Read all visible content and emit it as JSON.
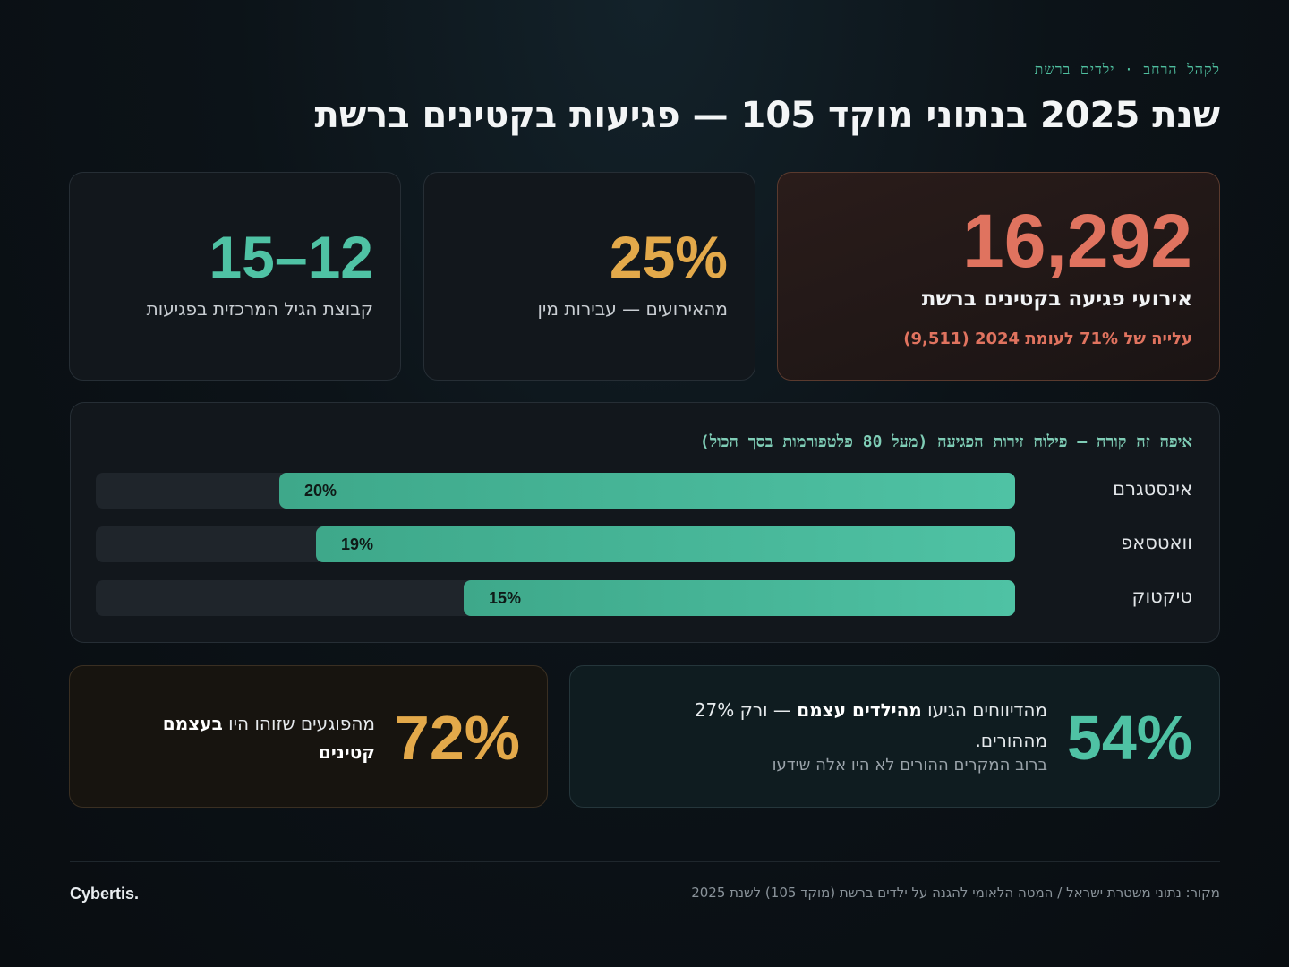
{
  "header": {
    "eyebrow": "לקהל הרחב · ילדים ברשת",
    "title": "שנת 2025 בנתוני מוקד 105 — פגיעות בקטינים ברשת"
  },
  "stats": {
    "hero": {
      "value": "16,292",
      "label": "אירועי פגיעה בקטינים ברשת",
      "note": "עלייה של 71% לעומת 2024 (9,511)",
      "color": "#e0735f"
    },
    "mid": {
      "value": "25%",
      "label": "מהאירועים — עבירות מין",
      "color": "#e3a94a"
    },
    "left": {
      "value": "15–12",
      "label": "קבוצת הגיל המרכזית בפגיעות",
      "color": "#4fc2a4"
    }
  },
  "platforms": {
    "title": "איפה זה קורה — פילוח זירות הפגיעה (מעל 80 פלטפורמות בסך הכול)",
    "max_percent": 25,
    "items": [
      {
        "name": "אינסטגרם",
        "value": "20%",
        "percent": 20
      },
      {
        "name": "וואטסאפ",
        "value": "19%",
        "percent": 19
      },
      {
        "name": "טיקטוק",
        "value": "15%",
        "percent": 15
      }
    ],
    "bar_color": "#4fc2a4"
  },
  "reports": {
    "value": "54%",
    "text_prefix": "מהדיווחים הגיעו ",
    "text_bold": "מהילדים עצמם",
    "text_suffix": " — ורק 27% מההורים.",
    "sub": "ברוב המקרים ההורים לא היו אלה שידעו",
    "color": "#4fc2a4"
  },
  "offenders": {
    "value": "72%",
    "text_prefix": "מהפוגעים שזוהו היו ",
    "text_bold": "בעצמם קטינים",
    "color": "#e3a94a"
  },
  "footer": {
    "source": "מקור: נתוני משטרת ישראל / המטה הלאומי להגנה על ילדים ברשת (מוקד 105) לשנת 2025",
    "brand": "Cybertis."
  }
}
